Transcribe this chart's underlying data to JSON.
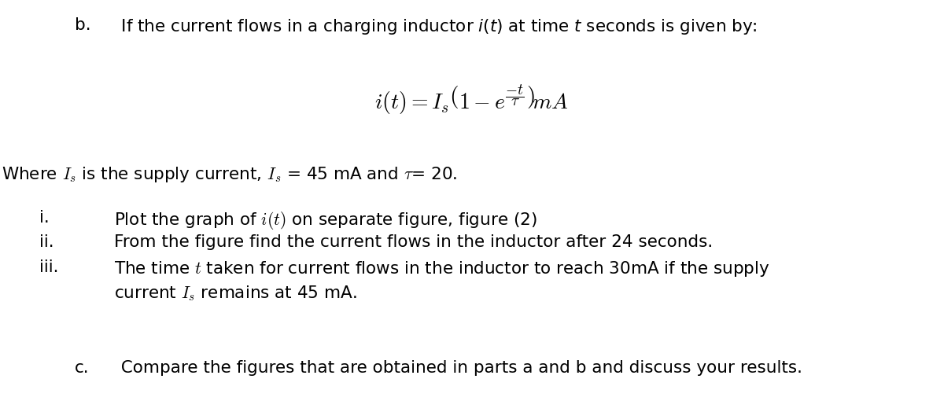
{
  "background_color": "#ffffff",
  "figsize": [
    12.0,
    5.24
  ],
  "dpi": 100,
  "part_b_label": "b.",
  "part_b_text": "  If the current flows in a charging inductor $i(t)$ at time $t$ seconds is given by:",
  "formula": "$i(t) = I_s\\left(1 - e^{\\dfrac{-t}{\\tau}}\\right)\\!mA$",
  "where_text": "Where $I_s$ is the supply current, $I_s$ = 45 mA and $\\tau$= 20.",
  "item_i_label": "i.",
  "item_i_text": "Plot the graph of $i(t)$ on separate figure, figure (2)",
  "item_ii_label": "ii.",
  "item_ii_text": "From the figure find the current flows in the inductor after 24 seconds.",
  "item_iii_label": "iii.",
  "item_iii_text1": "The time $t$ taken for current flows in the inductor to reach 30mA if the supply",
  "item_iii_text2": "current $I_s$ remains at 45 mA.",
  "part_c_label": "c.",
  "part_c_text": "  Compare the figures that are obtained in parts a and b and discuss your results.",
  "font_size_main": 15.5,
  "font_size_formula": 20,
  "font_family": "sans-serif"
}
